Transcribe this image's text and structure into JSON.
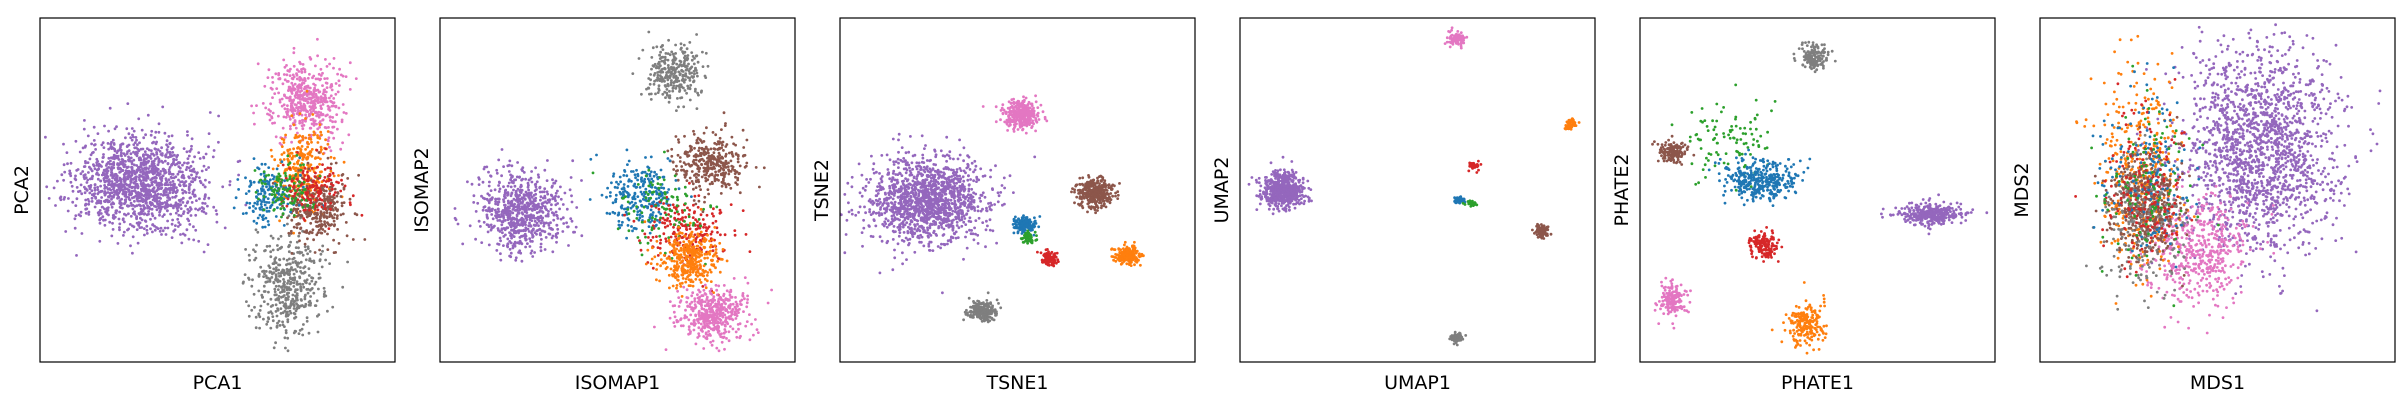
{
  "colors": {
    "purple": "#9467bd",
    "pink": "#e377c2",
    "gray": "#7f7f7f",
    "orange": "#ff7f0e",
    "brown": "#8c564b",
    "blue": "#1f77b4",
    "red": "#d62728",
    "green": "#2ca02c"
  },
  "chart_data": [
    {
      "type": "scatter",
      "xlabel": "PCA1",
      "ylabel": "PCA2",
      "xlim": [
        0,
        100
      ],
      "ylim": [
        0,
        100
      ],
      "grid": false,
      "series": [
        {
          "color_key": "purple",
          "clusters": [
            {
              "x": 28,
              "y": 52,
              "sx": 9,
              "sy": 7,
              "n": 1400
            }
          ]
        },
        {
          "color_key": "pink",
          "clusters": [
            {
              "x": 75,
              "y": 76,
              "sx": 5,
              "sy": 6,
              "n": 500
            }
          ]
        },
        {
          "color_key": "gray",
          "clusters": [
            {
              "x": 70,
              "y": 22,
              "sx": 5,
              "sy": 7,
              "n": 450
            }
          ]
        },
        {
          "color_key": "orange",
          "clusters": [
            {
              "x": 74,
              "y": 56,
              "sx": 4,
              "sy": 6,
              "n": 300
            }
          ]
        },
        {
          "color_key": "brown",
          "clusters": [
            {
              "x": 78,
              "y": 45,
              "sx": 4,
              "sy": 5,
              "n": 320
            }
          ]
        },
        {
          "color_key": "blue",
          "clusters": [
            {
              "x": 64,
              "y": 48,
              "sx": 4,
              "sy": 4,
              "n": 160
            }
          ]
        },
        {
          "color_key": "red",
          "clusters": [
            {
              "x": 77,
              "y": 50,
              "sx": 4,
              "sy": 4,
              "n": 140
            }
          ]
        },
        {
          "color_key": "green",
          "clusters": [
            {
              "x": 70,
              "y": 50,
              "sx": 4,
              "sy": 4,
              "n": 100
            }
          ]
        }
      ]
    },
    {
      "type": "scatter",
      "xlabel": "ISOMAP1",
      "ylabel": "ISOMAP2",
      "xlim": [
        0,
        100
      ],
      "ylim": [
        0,
        100
      ],
      "grid": false,
      "series": [
        {
          "color_key": "purple",
          "clusters": [
            {
              "x": 23,
              "y": 44,
              "sx": 6,
              "sy": 6,
              "n": 700
            }
          ]
        },
        {
          "color_key": "gray",
          "clusters": [
            {
              "x": 66,
              "y": 84,
              "sx": 4,
              "sy": 4,
              "n": 300
            }
          ]
        },
        {
          "color_key": "brown",
          "clusters": [
            {
              "x": 76,
              "y": 58,
              "sx": 5,
              "sy": 4,
              "n": 350
            }
          ]
        },
        {
          "color_key": "blue",
          "clusters": [
            {
              "x": 56,
              "y": 48,
              "sx": 5,
              "sy": 5,
              "n": 250
            }
          ]
        },
        {
          "color_key": "red",
          "clusters": [
            {
              "x": 70,
              "y": 38,
              "sx": 6,
              "sy": 5,
              "n": 220
            }
          ]
        },
        {
          "color_key": "green",
          "clusters": [
            {
              "x": 62,
              "y": 45,
              "sx": 7,
              "sy": 7,
              "n": 100
            }
          ]
        },
        {
          "color_key": "orange",
          "clusters": [
            {
              "x": 70,
              "y": 30,
              "sx": 4,
              "sy": 4,
              "n": 350
            }
          ]
        },
        {
          "color_key": "pink",
          "clusters": [
            {
              "x": 77,
              "y": 14,
              "sx": 5,
              "sy": 4,
              "n": 450
            }
          ]
        }
      ]
    },
    {
      "type": "scatter",
      "xlabel": "TSNE1",
      "ylabel": "TSNE2",
      "xlim": [
        0,
        100
      ],
      "ylim": [
        0,
        100
      ],
      "grid": false,
      "series": [
        {
          "color_key": "purple",
          "clusters": [
            {
              "x": 24,
              "y": 47,
              "sx": 8,
              "sy": 6,
              "n": 1400
            }
          ]
        },
        {
          "color_key": "pink",
          "clusters": [
            {
              "x": 51,
              "y": 72,
              "sx": 2.5,
              "sy": 2,
              "n": 350
            }
          ]
        },
        {
          "color_key": "brown",
          "clusters": [
            {
              "x": 72,
              "y": 49,
              "sx": 2.5,
              "sy": 2,
              "n": 350
            }
          ]
        },
        {
          "color_key": "blue",
          "clusters": [
            {
              "x": 52,
              "y": 40,
              "sx": 1.5,
              "sy": 1.2,
              "n": 150
            }
          ]
        },
        {
          "color_key": "green",
          "clusters": [
            {
              "x": 53,
              "y": 36,
              "sx": 1.2,
              "sy": 0.8,
              "n": 60
            }
          ]
        },
        {
          "color_key": "red",
          "clusters": [
            {
              "x": 59,
              "y": 30,
              "sx": 1.2,
              "sy": 1,
              "n": 100
            }
          ]
        },
        {
          "color_key": "orange",
          "clusters": [
            {
              "x": 81,
              "y": 31,
              "sx": 1.8,
              "sy": 1.3,
              "n": 200
            }
          ]
        },
        {
          "color_key": "gray",
          "clusters": [
            {
              "x": 40,
              "y": 15,
              "sx": 2,
              "sy": 1.5,
              "n": 200
            }
          ]
        }
      ]
    },
    {
      "type": "scatter",
      "xlabel": "UMAP1",
      "ylabel": "UMAP2",
      "xlim": [
        0,
        100
      ],
      "ylim": [
        0,
        100
      ],
      "grid": false,
      "series": [
        {
          "color_key": "purple",
          "clusters": [
            {
              "x": 12,
              "y": 50,
              "sx": 3,
              "sy": 2.5,
              "n": 600
            }
          ]
        },
        {
          "color_key": "pink",
          "clusters": [
            {
              "x": 61,
              "y": 94,
              "sx": 1.2,
              "sy": 1,
              "n": 100
            }
          ]
        },
        {
          "color_key": "orange",
          "clusters": [
            {
              "x": 93,
              "y": 69,
              "sx": 0.8,
              "sy": 0.7,
              "n": 60
            }
          ]
        },
        {
          "color_key": "red",
          "clusters": [
            {
              "x": 66,
              "y": 57,
              "sx": 0.7,
              "sy": 0.6,
              "n": 40
            }
          ]
        },
        {
          "color_key": "blue",
          "clusters": [
            {
              "x": 62,
              "y": 47,
              "sx": 0.8,
              "sy": 0.5,
              "n": 40
            }
          ]
        },
        {
          "color_key": "green",
          "clusters": [
            {
              "x": 65,
              "y": 46,
              "sx": 0.8,
              "sy": 0.4,
              "n": 30
            }
          ]
        },
        {
          "color_key": "brown",
          "clusters": [
            {
              "x": 85,
              "y": 38,
              "sx": 1,
              "sy": 0.9,
              "n": 80
            }
          ]
        },
        {
          "color_key": "gray",
          "clusters": [
            {
              "x": 61,
              "y": 7,
              "sx": 0.9,
              "sy": 0.8,
              "n": 70
            }
          ]
        }
      ]
    },
    {
      "type": "scatter",
      "xlabel": "PHATE1",
      "ylabel": "PHATE2",
      "xlim": [
        0,
        100
      ],
      "ylim": [
        0,
        100
      ],
      "grid": false,
      "series": [
        {
          "color_key": "gray",
          "clusters": [
            {
              "x": 49,
              "y": 89,
              "sx": 2,
              "sy": 2,
              "n": 150
            }
          ]
        },
        {
          "color_key": "brown",
          "clusters": [
            {
              "x": 9,
              "y": 61,
              "sx": 2,
              "sy": 1.5,
              "n": 150
            }
          ]
        },
        {
          "color_key": "green",
          "clusters": [
            {
              "x": 25,
              "y": 65,
              "sx": 6,
              "sy": 6,
              "n": 100
            }
          ]
        },
        {
          "color_key": "blue",
          "clusters": [
            {
              "x": 34,
              "y": 53,
              "sx": 5,
              "sy": 3,
              "n": 350
            }
          ]
        },
        {
          "color_key": "purple",
          "clusters": [
            {
              "x": 82,
              "y": 43,
              "sx": 5,
              "sy": 1.5,
              "n": 350
            }
          ]
        },
        {
          "color_key": "red",
          "clusters": [
            {
              "x": 35,
              "y": 34,
              "sx": 1.8,
              "sy": 2,
              "n": 150
            }
          ]
        },
        {
          "color_key": "pink",
          "clusters": [
            {
              "x": 9,
              "y": 18,
              "sx": 2,
              "sy": 2.5,
              "n": 150
            }
          ]
        },
        {
          "color_key": "orange",
          "clusters": [
            {
              "x": 47,
              "y": 11,
              "sx": 2.5,
              "sy": 3,
              "n": 200
            }
          ]
        }
      ]
    },
    {
      "type": "scatter",
      "xlabel": "MDS1",
      "ylabel": "MDS2",
      "xlim": [
        0,
        100
      ],
      "ylim": [
        0,
        100
      ],
      "grid": false,
      "series": [
        {
          "color_key": "purple",
          "clusters": [
            {
              "x": 62,
              "y": 62,
              "sx": 11,
              "sy": 15,
              "n": 1700
            }
          ]
        },
        {
          "color_key": "pink",
          "clusters": [
            {
              "x": 45,
              "y": 33,
              "sx": 7,
              "sy": 8,
              "n": 500
            }
          ]
        },
        {
          "color_key": "orange",
          "clusters": [
            {
              "x": 28,
              "y": 55,
              "sx": 6,
              "sy": 14,
              "n": 400
            }
          ]
        },
        {
          "color_key": "brown",
          "clusters": [
            {
              "x": 30,
              "y": 45,
              "sx": 5,
              "sy": 7,
              "n": 500
            }
          ]
        },
        {
          "color_key": "gray",
          "clusters": [
            {
              "x": 30,
              "y": 38,
              "sx": 6,
              "sy": 10,
              "n": 200
            }
          ]
        },
        {
          "color_key": "blue",
          "clusters": [
            {
              "x": 30,
              "y": 55,
              "sx": 6,
              "sy": 12,
              "n": 150
            }
          ]
        },
        {
          "color_key": "red",
          "clusters": [
            {
              "x": 30,
              "y": 50,
              "sx": 6,
              "sy": 12,
              "n": 150
            }
          ]
        },
        {
          "color_key": "green",
          "clusters": [
            {
              "x": 30,
              "y": 50,
              "sx": 6,
              "sy": 12,
              "n": 100
            }
          ]
        }
      ]
    }
  ]
}
